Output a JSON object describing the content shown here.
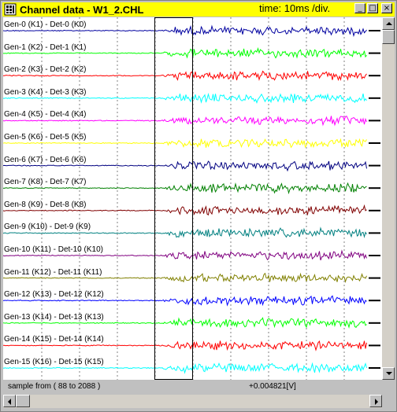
{
  "window": {
    "title": "Channel data - W1_2.CHL",
    "time_div": "time: 10ms /div."
  },
  "title_buttons": {
    "minimize": "_",
    "maximize": "□",
    "close": "×"
  },
  "channels": [
    {
      "label": "Gen-0 (K1) - Det-0 (K0)",
      "color": "#0000a0"
    },
    {
      "label": "Gen-1 (K2) - Det-1 (K1)",
      "color": "#00ff00"
    },
    {
      "label": "Gen-2 (K3) - Det-2 (K2)",
      "color": "#ff0000"
    },
    {
      "label": "Gen-3 (K4) - Det-3 (K3)",
      "color": "#00ffff"
    },
    {
      "label": "Gen-4 (K5) - Det-4 (K4)",
      "color": "#ff00ff"
    },
    {
      "label": "Gen-5 (K6) - Det-5 (K5)",
      "color": "#ffff00"
    },
    {
      "label": "Gen-6 (K7) - Det-6 (K6)",
      "color": "#000080"
    },
    {
      "label": "Gen-7 (K8) - Det-7 (K7)",
      "color": "#008000"
    },
    {
      "label": "Gen-8 (K9) - Det-8 (K8)",
      "color": "#800000"
    },
    {
      "label": "Gen-9 (K10) - Det-9 (K9)",
      "color": "#008080"
    },
    {
      "label": "Gen-10 (K11) - Det-10 (K10)",
      "color": "#800080"
    },
    {
      "label": "Gen-11 (K12) - Det-11 (K11)",
      "color": "#808000"
    },
    {
      "label": "Gen-12 (K13) - Det-12 (K12)",
      "color": "#0000ff"
    },
    {
      "label": "Gen-13 (K14) - Det-13 (K13)",
      "color": "#00ff00"
    },
    {
      "label": "Gen-14 (K15) - Det-14 (K14)",
      "color": "#ff0000"
    },
    {
      "label": "Gen-15 (K16) - Det-15 (K15)",
      "color": "#00ffff"
    }
  ],
  "status": {
    "sample_range": "sample from ( 88 to 2088 )",
    "value": "+0.004821[V]"
  },
  "colors": {
    "titlebar": "#ffff00",
    "plot_bg": "#ffffff",
    "frame": "#c0c0c0"
  }
}
